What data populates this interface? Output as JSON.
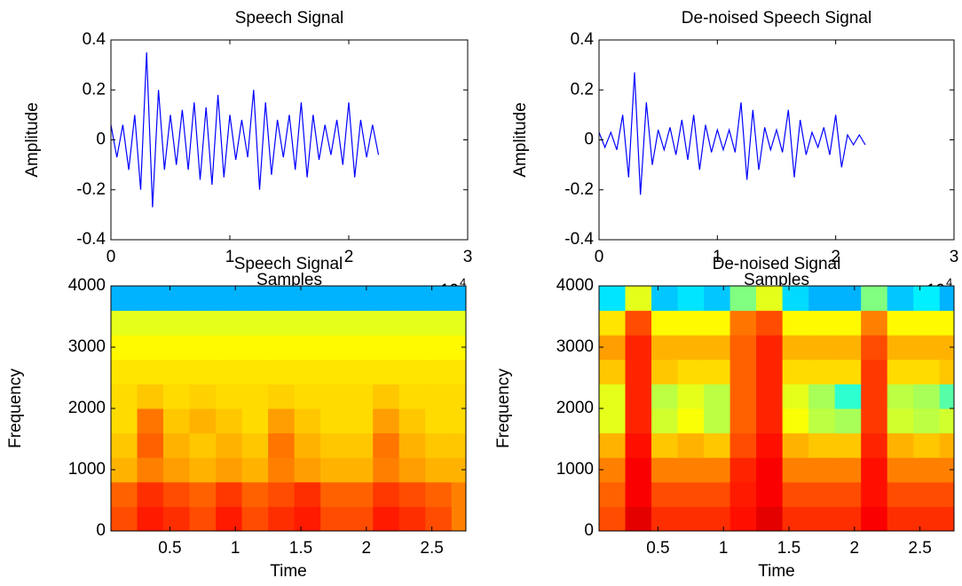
{
  "chart_data": [
    {
      "type": "line",
      "title": "Speech Signal",
      "xlabel": "Samples",
      "ylabel": "Amplitude",
      "offset_text": "x 10",
      "offset_exponent": "4",
      "color": "#0000ff",
      "x": [
        0,
        500,
        1000,
        1500,
        2000,
        2500,
        3000,
        3500,
        4000,
        4500,
        5000,
        5500,
        6000,
        6500,
        7000,
        7500,
        8000,
        8500,
        9000,
        9500,
        10000,
        10500,
        11000,
        11500,
        12000,
        12500,
        13000,
        13500,
        14000,
        14500,
        15000,
        15500,
        16000,
        16500,
        17000,
        17500,
        18000,
        18500,
        19000,
        19500,
        20000,
        20500,
        21000,
        21500,
        22000,
        22500
      ],
      "values": [
        0.06,
        -0.07,
        0.06,
        -0.12,
        0.1,
        -0.2,
        0.35,
        -0.27,
        0.2,
        -0.12,
        0.1,
        -0.1,
        0.12,
        -0.12,
        0.15,
        -0.16,
        0.13,
        -0.18,
        0.18,
        -0.15,
        0.1,
        -0.08,
        0.08,
        -0.07,
        0.2,
        -0.2,
        0.15,
        -0.14,
        0.08,
        -0.07,
        0.1,
        -0.12,
        0.15,
        -0.15,
        0.1,
        -0.08,
        0.06,
        -0.06,
        0.08,
        -0.1,
        0.15,
        -0.15,
        0.08,
        -0.07,
        0.06,
        -0.06
      ],
      "xlim": [
        0,
        30000
      ],
      "xticks": [
        0,
        {
          "value": 10000,
          "label": "1"
        },
        {
          "value": 20000,
          "label": "2"
        },
        {
          "value": 30000,
          "label": "3"
        }
      ],
      "ylim": [
        -0.4,
        0.4
      ],
      "yticks": [
        -0.4,
        -0.2,
        0,
        0.2,
        0.4
      ]
    },
    {
      "type": "line",
      "title": "De-noised Speech Signal",
      "xlabel": "Samples",
      "ylabel": "Amplitude",
      "offset_text": "x 10",
      "offset_exponent": "4",
      "color": "#0000ff",
      "x": [
        0,
        500,
        1000,
        1500,
        2000,
        2500,
        3000,
        3500,
        4000,
        4500,
        5000,
        5500,
        6000,
        6500,
        7000,
        7500,
        8000,
        8500,
        9000,
        9500,
        10000,
        10500,
        11000,
        11500,
        12000,
        12500,
        13000,
        13500,
        14000,
        14500,
        15000,
        15500,
        16000,
        16500,
        17000,
        17500,
        18000,
        18500,
        19000,
        19500,
        20000,
        20500,
        21000,
        21500,
        22000,
        22500
      ],
      "values": [
        0.03,
        -0.03,
        0.03,
        -0.04,
        0.1,
        -0.15,
        0.27,
        -0.22,
        0.15,
        -0.1,
        0.04,
        -0.04,
        0.05,
        -0.06,
        0.08,
        -0.08,
        0.1,
        -0.12,
        0.06,
        -0.05,
        0.04,
        -0.04,
        0.04,
        -0.05,
        0.15,
        -0.16,
        0.12,
        -0.12,
        0.05,
        -0.04,
        0.04,
        -0.05,
        0.12,
        -0.15,
        0.08,
        -0.06,
        0.03,
        -0.03,
        0.05,
        -0.06,
        0.1,
        -0.11,
        0.02,
        -0.02,
        0.02,
        -0.02
      ],
      "xlim": [
        0,
        30000
      ],
      "xticks": [
        0,
        {
          "value": 10000,
          "label": "1"
        },
        {
          "value": 20000,
          "label": "2"
        },
        {
          "value": 30000,
          "label": "3"
        }
      ],
      "ylim": [
        -0.4,
        0.4
      ],
      "yticks": [
        -0.4,
        -0.2,
        0,
        0.2,
        0.4
      ]
    },
    {
      "type": "heatmap",
      "title": "Speech Signal",
      "xlabel": "Time",
      "ylabel": "Frequency",
      "colormap": "jet",
      "clim": [
        0,
        10
      ],
      "x": [
        0.15,
        0.35,
        0.55,
        0.75,
        0.95,
        1.15,
        1.35,
        1.55,
        1.75,
        1.95,
        2.15,
        2.35,
        2.55,
        2.75
      ],
      "y": [
        200,
        600,
        1000,
        1400,
        1800,
        2200,
        2600,
        3000,
        3400,
        3800
      ],
      "z": [
        [
          8,
          8.5,
          8.3,
          8,
          8.5,
          8,
          8.3,
          8.5,
          8,
          8,
          8.5,
          8.3,
          8,
          7.5
        ],
        [
          7.8,
          8.3,
          8,
          7.8,
          8.2,
          7.8,
          8,
          8.3,
          7.8,
          7.8,
          8.2,
          8,
          7.8,
          7.5
        ],
        [
          7,
          7.5,
          7.2,
          7,
          7.2,
          7,
          7.5,
          7.2,
          7,
          7,
          7.5,
          7.2,
          7,
          7
        ],
        [
          6.8,
          7.8,
          7,
          6.8,
          7,
          6.8,
          7.6,
          7,
          6.8,
          6.8,
          7.6,
          7,
          6.8,
          6.8
        ],
        [
          6.6,
          7.6,
          6.8,
          7,
          6.8,
          6.6,
          7.2,
          6.8,
          6.6,
          6.6,
          7.2,
          6.8,
          6.6,
          6.6
        ],
        [
          6.6,
          6.8,
          6.6,
          6.7,
          6.6,
          6.6,
          6.7,
          6.6,
          6.6,
          6.6,
          6.8,
          6.6,
          6.6,
          6.6
        ],
        [
          6.5,
          6.5,
          6.5,
          6.5,
          6.5,
          6.5,
          6.5,
          6.5,
          6.5,
          6.5,
          6.5,
          6.5,
          6.5,
          6.5
        ],
        [
          6.3,
          6.3,
          6.3,
          6.3,
          6.3,
          6.3,
          6.3,
          6.3,
          6.3,
          6.3,
          6.3,
          6.3,
          6.3,
          6.3
        ],
        [
          6,
          6,
          6,
          6,
          6,
          6,
          6,
          6,
          6,
          6,
          6,
          6,
          6,
          6
        ],
        [
          3,
          3,
          3,
          3,
          3,
          3,
          3,
          3,
          3,
          3,
          3,
          3,
          3,
          3
        ]
      ],
      "xlim": [
        0.05,
        2.76
      ],
      "xticks": [
        0.5,
        1,
        1.5,
        2,
        2.5
      ],
      "ylim": [
        0,
        4000
      ],
      "yticks": [
        0,
        1000,
        2000,
        3000,
        4000
      ]
    },
    {
      "type": "heatmap",
      "title": "De-noised Signal",
      "xlabel": "Time",
      "ylabel": "Frequency",
      "colormap": "jet",
      "clim": [
        0,
        10
      ],
      "x": [
        0.15,
        0.35,
        0.55,
        0.75,
        0.95,
        1.15,
        1.35,
        1.55,
        1.75,
        1.95,
        2.15,
        2.35,
        2.55,
        2.75
      ],
      "y": [
        200,
        600,
        1000,
        1400,
        1800,
        2200,
        2600,
        3000,
        3400,
        3800
      ],
      "z": [
        [
          8,
          9,
          8.3,
          8.3,
          8.3,
          8.6,
          9,
          8.3,
          8.3,
          8.3,
          8.8,
          8.3,
          8.3,
          8.3
        ],
        [
          7.8,
          8.8,
          8,
          8,
          8,
          8.5,
          8.8,
          8,
          8,
          8,
          8.6,
          8,
          8,
          8
        ],
        [
          7.5,
          8.8,
          7.5,
          7.5,
          7.5,
          8.4,
          8.8,
          7.5,
          7.5,
          7.5,
          8.6,
          7.5,
          7.5,
          7.5
        ],
        [
          7,
          8.6,
          6.8,
          7,
          6.8,
          8,
          8.6,
          7,
          6.8,
          6.8,
          8.4,
          7,
          6.8,
          7
        ],
        [
          6,
          8.4,
          5.8,
          6.2,
          5.6,
          7.8,
          8.4,
          6.2,
          5.6,
          5.4,
          8.2,
          5.8,
          5.6,
          5.8
        ],
        [
          6,
          8.4,
          5.6,
          6,
          5.6,
          7.8,
          8.4,
          6,
          5.4,
          4.2,
          8.2,
          5.6,
          5.4,
          4.6
        ],
        [
          6.8,
          8.4,
          6.8,
          6.6,
          6.6,
          7.8,
          8.4,
          6.6,
          6.6,
          6.6,
          8.2,
          6.6,
          6.6,
          6.8
        ],
        [
          7.2,
          8.4,
          7,
          7,
          7,
          7.8,
          8.4,
          7,
          7,
          7,
          8,
          7,
          7,
          7
        ],
        [
          6.5,
          8,
          6.3,
          6.3,
          6.3,
          7.6,
          8,
          6.3,
          6.3,
          6.3,
          7.5,
          6.3,
          6.3,
          6.3
        ],
        [
          3.5,
          6,
          3.2,
          3.5,
          3.2,
          5,
          6,
          3.4,
          3,
          3,
          5,
          3.2,
          3.6,
          3
        ]
      ],
      "xlim": [
        0.05,
        2.76
      ],
      "xticks": [
        0.5,
        1,
        1.5,
        2,
        2.5
      ],
      "ylim": [
        0,
        4000
      ],
      "yticks": [
        0,
        1000,
        2000,
        3000,
        4000
      ]
    }
  ]
}
